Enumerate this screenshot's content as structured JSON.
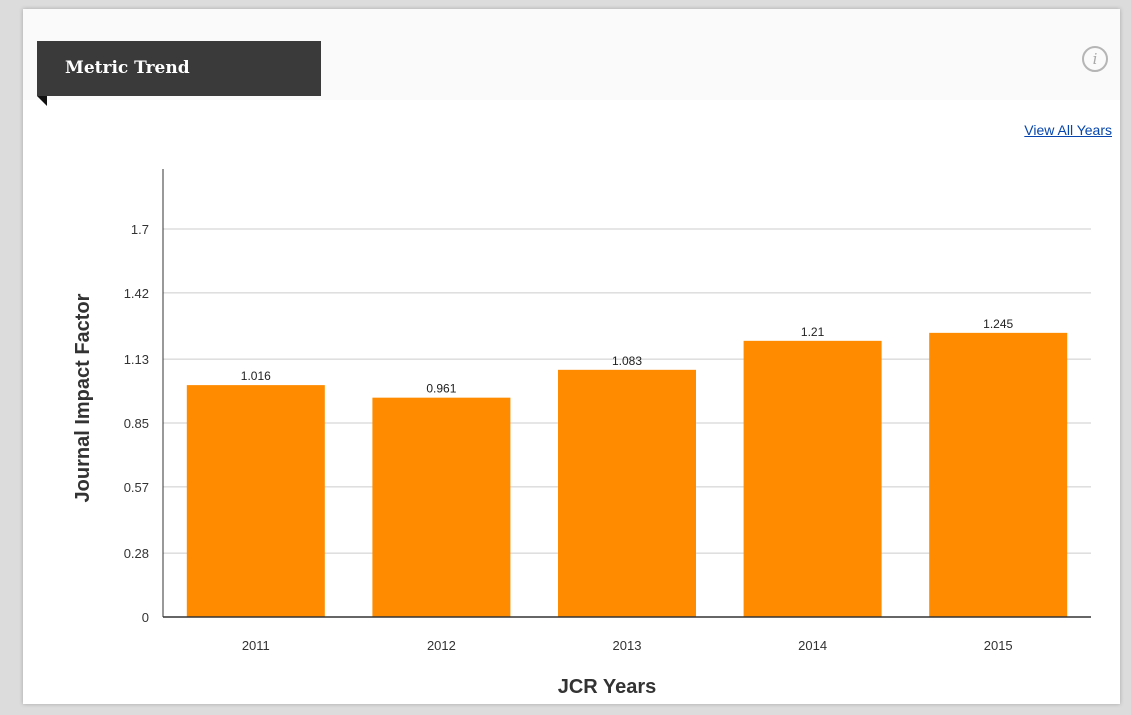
{
  "panel": {
    "title": "Metric Trend",
    "info_icon": "info-icon",
    "view_all_link": "View All Years"
  },
  "chart_data": {
    "type": "bar",
    "categories": [
      "2011",
      "2012",
      "2013",
      "2014",
      "2015"
    ],
    "values": [
      1.016,
      0.961,
      1.083,
      1.21,
      1.245
    ],
    "value_labels": [
      "1.016",
      "0.961",
      "1.083",
      "1.21",
      "1.245"
    ],
    "xlabel": "JCR Years",
    "ylabel": "Journal Impact Factor",
    "yticks": [
      0,
      0.28,
      0.57,
      0.85,
      1.13,
      1.42,
      1.7
    ],
    "ytick_labels": [
      "0",
      "0.28",
      "0.57",
      "0.85",
      "1.13",
      "1.42",
      "1.7"
    ],
    "ylim": [
      0,
      1.7
    ],
    "grid": true,
    "colors": {
      "bar": "#ff8c00",
      "grid": "#cccccc",
      "axis": "#333333"
    }
  }
}
